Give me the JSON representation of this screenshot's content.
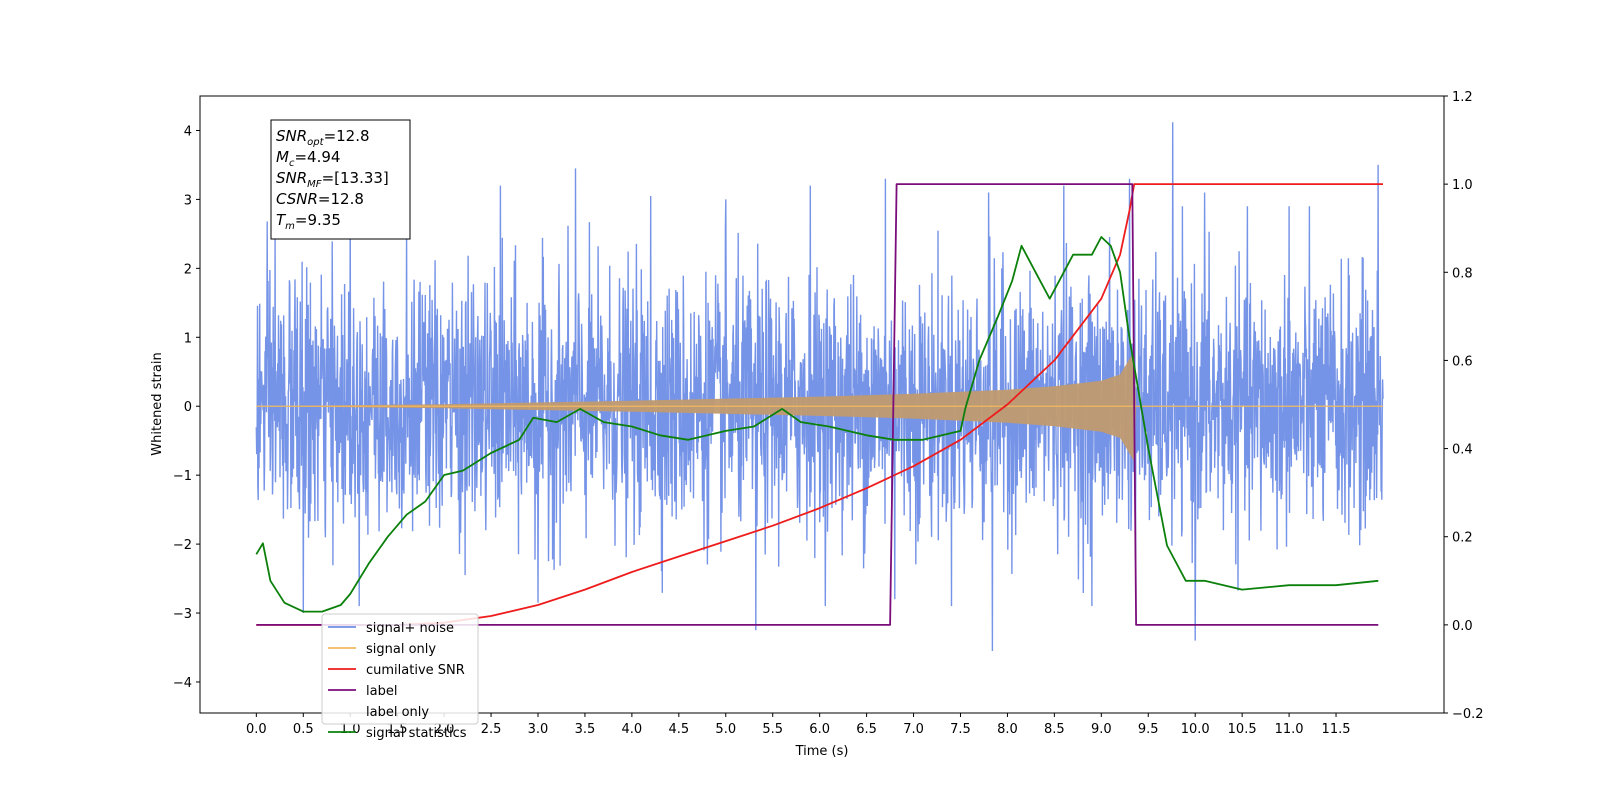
{
  "chart_data": {
    "type": "line",
    "xlabel": "Time (s)",
    "ylabel_left": "Whitened strain",
    "xlim": [
      -0.6,
      12.65
    ],
    "ylim_left": [
      -4.45,
      4.5
    ],
    "ylim_right": [
      -0.2,
      1.2
    ],
    "x_ticks": [
      "0.0",
      "0.5",
      "1.0",
      "1.5",
      "2.0",
      "2.5",
      "3.0",
      "3.5",
      "4.0",
      "4.5",
      "5.0",
      "5.5",
      "6.0",
      "6.5",
      "7.0",
      "7.5",
      "8.0",
      "8.5",
      "9.0",
      "9.5",
      "10.0",
      "10.5",
      "11.0",
      "11.5"
    ],
    "y_ticks_left": [
      "−4",
      "−3",
      "−2",
      "−1",
      "0",
      "1",
      "2",
      "3",
      "4"
    ],
    "y_ticks_right": [
      "−0.2",
      "0.0",
      "0.2",
      "0.4",
      "0.6",
      "0.8",
      "1.0",
      "1.2"
    ],
    "annotation": [
      {
        "base": "SNR",
        "sub": "opt",
        "rest": "=12.8"
      },
      {
        "base": "M",
        "sub": "c",
        "rest": "=4.94"
      },
      {
        "base": "SNR",
        "sub": "MF",
        "rest": "=[13.33]"
      },
      {
        "base": "CSNR",
        "sub": "",
        "rest": "=12.8"
      },
      {
        "base": "T",
        "sub": "m",
        "rest": "=9.35"
      }
    ],
    "legend_position": "lower-left",
    "series": [
      {
        "name": "signal+ noise",
        "color": "#6f8ee6",
        "axis": "left",
        "noise_std": 0.9,
        "x_range": [
          0.0,
          12.0
        ],
        "spikes": [
          [
            0.2,
            2.55
          ],
          [
            1.0,
            3.05
          ],
          [
            1.6,
            2.6
          ],
          [
            2.6,
            3.2
          ],
          [
            3.4,
            3.45
          ],
          [
            4.2,
            3.05
          ],
          [
            5.0,
            3.0
          ],
          [
            5.9,
            3.2
          ],
          [
            6.7,
            3.3
          ],
          [
            7.8,
            3.1
          ],
          [
            8.6,
            3.2
          ],
          [
            9.3,
            3.3
          ],
          [
            9.76,
            4.12
          ],
          [
            10.1,
            3.1
          ],
          [
            11.0,
            2.9
          ],
          [
            11.95,
            3.5
          ],
          [
            5.32,
            -3.25
          ],
          [
            7.84,
            -3.55
          ],
          [
            10.0,
            -3.4
          ],
          [
            0.5,
            -3.0
          ],
          [
            3.0,
            -2.85
          ],
          [
            6.8,
            -2.8
          ],
          [
            8.9,
            -2.9
          ]
        ]
      },
      {
        "name": "signal only",
        "color": "#f0b860",
        "axis": "left",
        "envelope": [
          [
            0,
            0.0
          ],
          [
            2.0,
            0.03
          ],
          [
            4.0,
            0.08
          ],
          [
            6.0,
            0.14
          ],
          [
            7.0,
            0.18
          ],
          [
            8.0,
            0.24
          ],
          [
            8.5,
            0.29
          ],
          [
            9.0,
            0.37
          ],
          [
            9.2,
            0.46
          ],
          [
            9.35,
            0.8
          ],
          [
            9.37,
            0.0
          ],
          [
            12.0,
            0.0
          ]
        ]
      },
      {
        "name": "cumilative SNR",
        "color": "#ee1c1c",
        "axis": "right",
        "x": [
          0.0,
          1.5,
          2.0,
          2.5,
          3.0,
          3.5,
          4.0,
          4.5,
          5.0,
          5.5,
          6.0,
          6.5,
          7.0,
          7.5,
          8.0,
          8.5,
          9.0,
          9.2,
          9.3,
          9.35,
          12.0
        ],
        "y": [
          0.0,
          0.0,
          0.005,
          0.02,
          0.045,
          0.08,
          0.12,
          0.155,
          0.19,
          0.225,
          0.265,
          0.31,
          0.36,
          0.42,
          0.5,
          0.6,
          0.74,
          0.84,
          0.94,
          1.0,
          1.0
        ]
      },
      {
        "name": "label",
        "color": "#7b0d7b",
        "axis": "right",
        "x": [
          0.0,
          6.75,
          6.82,
          9.33,
          9.37,
          11.95
        ],
        "y": [
          0.0,
          0.0,
          1.0,
          1.0,
          0.0,
          0.0
        ]
      },
      {
        "name": "label only",
        "color": "#ffffff",
        "axis": "right",
        "x": [],
        "y": []
      },
      {
        "name": "signal statistics",
        "color": "#0b800b",
        "axis": "right",
        "x": [
          0.0,
          0.07,
          0.15,
          0.3,
          0.5,
          0.7,
          0.9,
          1.0,
          1.2,
          1.4,
          1.6,
          1.8,
          2.0,
          2.2,
          2.5,
          2.8,
          2.95,
          3.2,
          3.45,
          3.7,
          4.0,
          4.3,
          4.6,
          5.0,
          5.3,
          5.6,
          5.8,
          6.1,
          6.5,
          6.8,
          7.1,
          7.5,
          7.55,
          7.7,
          7.9,
          8.05,
          8.15,
          8.3,
          8.45,
          8.55,
          8.7,
          8.9,
          9.0,
          9.1,
          9.2,
          9.3,
          9.5,
          9.7,
          9.9,
          10.1,
          10.5,
          11.0,
          11.5,
          11.95
        ],
        "y": [
          0.16,
          0.185,
          0.1,
          0.05,
          0.03,
          0.03,
          0.045,
          0.07,
          0.14,
          0.2,
          0.25,
          0.28,
          0.34,
          0.35,
          0.39,
          0.42,
          0.47,
          0.46,
          0.49,
          0.46,
          0.45,
          0.43,
          0.42,
          0.44,
          0.45,
          0.49,
          0.46,
          0.45,
          0.43,
          0.42,
          0.42,
          0.44,
          0.49,
          0.6,
          0.7,
          0.78,
          0.86,
          0.8,
          0.74,
          0.78,
          0.84,
          0.84,
          0.88,
          0.86,
          0.8,
          0.65,
          0.4,
          0.18,
          0.1,
          0.1,
          0.08,
          0.09,
          0.09,
          0.1
        ]
      }
    ]
  }
}
